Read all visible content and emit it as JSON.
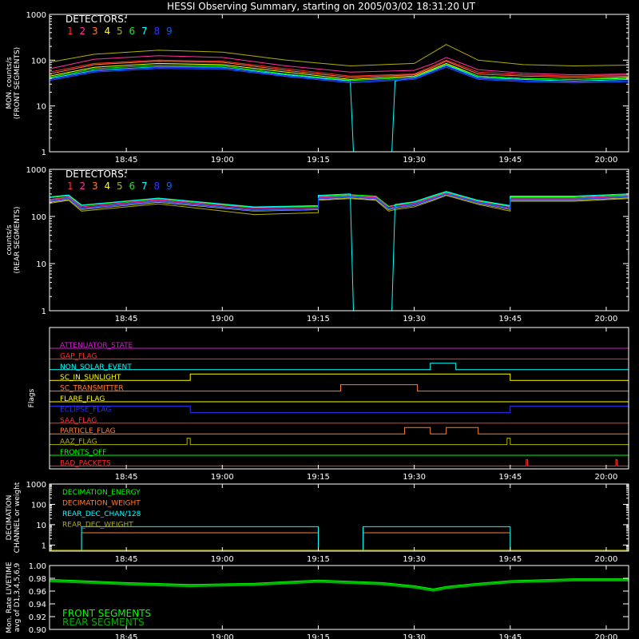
{
  "title": "HESSI Observing Summary, starting on 2005/03/02 18:31:20 UT",
  "time_ticks": [
    "18:45",
    "19:00",
    "19:15",
    "19:30",
    "19:45",
    "20:00"
  ],
  "x_range_minutes": [
    18.0,
    108.5
  ],
  "tick_minutes": [
    30,
    45,
    60,
    75,
    90,
    105
  ],
  "detectors": {
    "label": "DETECTORS:",
    "numbers": [
      "1",
      "2",
      "3",
      "4",
      "5",
      "6",
      "7",
      "8",
      "9"
    ],
    "colors": [
      "#ff3030",
      "#ff30a0",
      "#ff7f30",
      "#ffff00",
      "#b0b000",
      "#00ff00",
      "#00ffff",
      "#3030ff",
      "#0060ff"
    ]
  },
  "colors": {
    "axis": "#ffffff",
    "front": "#00ff00",
    "rear": "#00b000"
  },
  "chart_data": [
    {
      "type": "line",
      "ylabel": [
        "MON. counts/s",
        "(FRONT SEGMENTS)"
      ],
      "yscale": "log",
      "ylim": [
        1,
        1000
      ],
      "yticks": [
        "1000",
        "100",
        "10",
        "1"
      ],
      "series": [
        {
          "name": "1",
          "x": [
            18,
            25,
            35,
            45,
            55,
            65,
            75,
            78,
            80,
            85,
            92,
            100,
            108.5
          ],
          "y": [
            55,
            85,
            100,
            95,
            65,
            45,
            50,
            75,
            100,
            55,
            48,
            45,
            48
          ]
        },
        {
          "name": "2",
          "x": [
            18,
            25,
            35,
            45,
            55,
            65,
            75,
            78,
            80,
            85,
            92,
            100,
            108.5
          ],
          "y": [
            65,
            105,
            125,
            115,
            75,
            55,
            60,
            85,
            115,
            62,
            52,
            48,
            50
          ]
        },
        {
          "name": "3",
          "x": [
            18,
            25,
            35,
            45,
            55,
            65,
            75,
            78,
            80,
            85,
            92,
            100,
            108.5
          ],
          "y": [
            50,
            80,
            95,
            90,
            60,
            42,
            48,
            70,
            95,
            50,
            45,
            42,
            45
          ]
        },
        {
          "name": "4",
          "x": [
            18,
            25,
            35,
            45,
            55,
            65,
            75,
            78,
            80,
            85,
            92,
            100,
            108.5
          ],
          "y": [
            45,
            70,
            85,
            80,
            55,
            38,
            45,
            65,
            85,
            45,
            40,
            38,
            42
          ]
        },
        {
          "name": "5",
          "x": [
            18,
            25,
            35,
            45,
            55,
            65,
            75,
            78,
            80,
            85,
            92,
            100,
            108.5
          ],
          "y": [
            90,
            135,
            165,
            150,
            100,
            75,
            85,
            150,
            220,
            100,
            80,
            75,
            78
          ]
        },
        {
          "name": "6",
          "x": [
            18,
            25,
            35,
            45,
            55,
            65,
            75,
            78,
            80,
            85,
            92,
            100,
            108.5
          ],
          "y": [
            42,
            65,
            78,
            75,
            50,
            36,
            42,
            62,
            80,
            45,
            40,
            38,
            40
          ]
        },
        {
          "name": "7",
          "x": [
            18,
            25,
            35,
            45,
            55,
            65,
            65.5,
            71.5,
            72,
            75,
            78,
            80,
            85,
            92,
            100,
            108.5
          ],
          "y": [
            40,
            60,
            72,
            70,
            48,
            35,
            1,
            1,
            35,
            42,
            60,
            78,
            42,
            38,
            35,
            38
          ]
        },
        {
          "name": "8",
          "x": [
            18,
            25,
            35,
            45,
            55,
            65,
            75,
            78,
            80,
            85,
            92,
            100,
            108.5
          ],
          "y": [
            38,
            58,
            70,
            68,
            46,
            34,
            40,
            58,
            75,
            40,
            36,
            34,
            36
          ]
        },
        {
          "name": "9",
          "x": [
            18,
            25,
            35,
            45,
            55,
            65,
            75,
            78,
            80,
            85,
            92,
            100,
            108.5
          ],
          "y": [
            36,
            55,
            66,
            64,
            44,
            32,
            38,
            55,
            70,
            38,
            34,
            32,
            34
          ]
        }
      ]
    },
    {
      "type": "line",
      "ylabel": [
        "counts/s",
        "(REAR SEGMENTS)"
      ],
      "yscale": "log",
      "ylim": [
        1,
        1000
      ],
      "yticks": [
        "1000",
        "100",
        "10",
        "1"
      ],
      "series": [
        {
          "name": "1",
          "x": [
            18,
            21,
            23,
            35,
            50,
            60,
            60,
            65,
            65,
            69,
            71,
            72,
            75,
            78,
            80,
            85,
            90,
            90,
            100,
            108.5
          ],
          "y": [
            220,
            250,
            150,
            220,
            140,
            150,
            250,
            270,
            270,
            250,
            150,
            160,
            180,
            250,
            310,
            200,
            150,
            240,
            240,
            270
          ]
        },
        {
          "name": "2",
          "x": [
            18,
            21,
            23,
            35,
            50,
            60,
            60,
            65,
            65,
            69,
            71,
            72,
            75,
            78,
            80,
            85,
            90,
            90,
            100,
            108.5
          ],
          "y": [
            230,
            260,
            160,
            230,
            150,
            160,
            260,
            280,
            280,
            260,
            160,
            170,
            190,
            260,
            320,
            210,
            160,
            250,
            250,
            280
          ]
        },
        {
          "name": "3",
          "x": [
            18,
            21,
            23,
            35,
            50,
            60,
            60,
            65,
            65,
            69,
            71,
            72,
            75,
            78,
            80,
            85,
            90,
            90,
            100,
            108.5
          ],
          "y": [
            210,
            240,
            145,
            210,
            135,
            145,
            240,
            260,
            260,
            240,
            145,
            155,
            175,
            240,
            300,
            195,
            145,
            230,
            230,
            260
          ]
        },
        {
          "name": "4",
          "x": [
            18,
            21,
            23,
            35,
            50,
            60,
            60,
            65,
            65,
            69,
            71,
            72,
            75,
            78,
            80,
            85,
            90,
            90,
            100,
            108.5
          ],
          "y": [
            200,
            230,
            140,
            200,
            130,
            140,
            230,
            250,
            250,
            230,
            140,
            150,
            170,
            230,
            290,
            190,
            140,
            220,
            220,
            250
          ]
        },
        {
          "name": "5",
          "x": [
            18,
            21,
            23,
            35,
            50,
            60,
            60,
            65,
            65,
            69,
            71,
            72,
            75,
            78,
            80,
            85,
            90,
            90,
            100,
            108.5
          ],
          "y": [
            190,
            220,
            130,
            185,
            110,
            120,
            220,
            240,
            240,
            220,
            130,
            140,
            160,
            220,
            280,
            180,
            130,
            210,
            210,
            240
          ]
        },
        {
          "name": "6",
          "x": [
            18,
            21,
            23,
            35,
            50,
            60,
            60,
            65,
            65,
            69,
            71,
            72,
            75,
            78,
            80,
            85,
            90,
            90,
            100,
            108.5
          ],
          "y": [
            250,
            275,
            170,
            240,
            155,
            165,
            270,
            290,
            290,
            270,
            165,
            175,
            200,
            270,
            330,
            215,
            165,
            260,
            260,
            290
          ]
        },
        {
          "name": "7",
          "x": [
            18,
            21,
            23,
            35,
            50,
            60,
            60,
            65,
            65.5,
            71.5,
            72,
            75,
            78,
            80,
            85,
            90,
            90,
            100,
            108.5
          ],
          "y": [
            260,
            285,
            175,
            245,
            160,
            170,
            280,
            300,
            1,
            1,
            180,
            205,
            280,
            340,
            220,
            170,
            270,
            270,
            300
          ]
        },
        {
          "name": "8",
          "x": [
            18,
            21,
            23,
            35,
            50,
            60,
            60,
            65,
            65,
            69,
            71,
            72,
            75,
            78,
            80,
            85,
            90,
            90,
            100,
            108.5
          ],
          "y": [
            205,
            235,
            142,
            205,
            132,
            142,
            235,
            255,
            255,
            235,
            142,
            152,
            172,
            235,
            295,
            192,
            142,
            225,
            225,
            255
          ]
        },
        {
          "name": "9",
          "x": [
            18,
            21,
            23,
            35,
            50,
            60,
            60,
            65,
            65,
            69,
            71,
            72,
            75,
            78,
            80,
            85,
            90,
            90,
            100,
            108.5
          ],
          "y": [
            215,
            245,
            150,
            215,
            138,
            148,
            245,
            265,
            265,
            245,
            150,
            160,
            180,
            245,
            305,
            200,
            150,
            235,
            235,
            265
          ]
        }
      ]
    },
    {
      "type": "line",
      "ylabel": [
        "Flags"
      ],
      "flags": [
        {
          "name": "ATTENUATOR_STATE",
          "color": "#d020d0",
          "high": []
        },
        {
          "name": "GAP_FLAG",
          "color": "#ff3030",
          "high": []
        },
        {
          "name": "NON_SOLAR_EVENT",
          "color": "#00ffff",
          "high": [
            [
              77.5,
              81.5
            ]
          ]
        },
        {
          "name": "SC_IN_SUNLIGHT",
          "color": "#ffff00",
          "high": [
            [
              40,
              90
            ]
          ]
        },
        {
          "name": "SC_TRANSMITTER",
          "color": "#ff7f30",
          "high": [
            [
              63.5,
              75.5
            ]
          ]
        },
        {
          "name": "FLARE_FLAG",
          "color": "#ffff00",
          "high": []
        },
        {
          "name": "ECLIPSE_FLAG",
          "color": "#3030ff",
          "high": [
            [
              18,
              40
            ],
            [
              90,
              108.5
            ]
          ]
        },
        {
          "name": "SAA_FLAG",
          "color": "#ff3030",
          "high": []
        },
        {
          "name": "PARTICLE_FLAG",
          "color": "#ff7f30",
          "high": [
            [
              73.5,
              77.5
            ],
            [
              80,
              85
            ]
          ]
        },
        {
          "name": "AAZ_FLAG",
          "color": "#b0b000",
          "high": [
            [
              39.5,
              40
            ],
            [
              89.5,
              90
            ]
          ]
        },
        {
          "name": "FRONTS_OFF",
          "color": "#00ff00",
          "high": []
        },
        {
          "name": "BAD_PACKETS",
          "color": "#ff3030",
          "high": [
            [
              92.5,
              92.7
            ],
            [
              106.5,
              106.7
            ]
          ]
        }
      ]
    },
    {
      "type": "line",
      "ylabel": [
        "DECIMATION",
        "CHANNEL or weight"
      ],
      "yscale": "log",
      "ylim": [
        0.5,
        1000
      ],
      "yticks": [
        "1000",
        "100",
        "10",
        "1"
      ],
      "series": [
        {
          "name": "DECIMATION_ENERGY",
          "color": "#00ff00",
          "x": [
            18,
            108.5
          ],
          "y": [
            0.5,
            0.5
          ]
        },
        {
          "name": "DECIMATION_WEIGHT",
          "color": "#ff7f30",
          "x": [
            18,
            23,
            23,
            60,
            60,
            67,
            67,
            90,
            90,
            108.5
          ],
          "y": [
            0.5,
            0.5,
            4,
            4,
            0.5,
            0.5,
            4,
            4,
            0.5,
            0.5
          ]
        },
        {
          "name": "REAR_DEC_CHAN/128",
          "color": "#00ffff",
          "x": [
            18,
            23,
            23,
            60,
            60,
            67,
            67,
            90,
            90,
            108.5
          ],
          "y": [
            0.5,
            0.5,
            8,
            8,
            0.5,
            0.5,
            8,
            8,
            0.5,
            0.5
          ]
        },
        {
          "name": "REAR_DEC_WEIGHT",
          "color": "#b0b000",
          "x": [
            18,
            108.5
          ],
          "y": [
            0.55,
            0.55
          ]
        }
      ]
    },
    {
      "type": "line",
      "ylabel": [
        "Mon. Rate LIVETIME",
        "avg of D1,3,4,5,6,9"
      ],
      "ylim": [
        0.9,
        1.0
      ],
      "yticks": [
        "1.00",
        "0.98",
        "0.96",
        "0.94",
        "0.92",
        "0.90"
      ],
      "series": [
        {
          "name": "FRONT SEGMENTS",
          "x": [
            18,
            30,
            40,
            50,
            60,
            70,
            75,
            78,
            80,
            85,
            90,
            100,
            108.5
          ],
          "y": [
            0.977,
            0.972,
            0.969,
            0.971,
            0.976,
            0.972,
            0.967,
            0.962,
            0.966,
            0.971,
            0.975,
            0.978,
            0.978
          ]
        },
        {
          "name": "REAR SEGMENTS",
          "x": [
            18,
            30,
            40,
            50,
            60,
            70,
            75,
            78,
            80,
            85,
            90,
            100,
            108.5
          ],
          "y": [
            0.976,
            0.971,
            0.968,
            0.97,
            0.975,
            0.971,
            0.966,
            0.961,
            0.965,
            0.97,
            0.974,
            0.977,
            0.977
          ]
        }
      ]
    }
  ]
}
